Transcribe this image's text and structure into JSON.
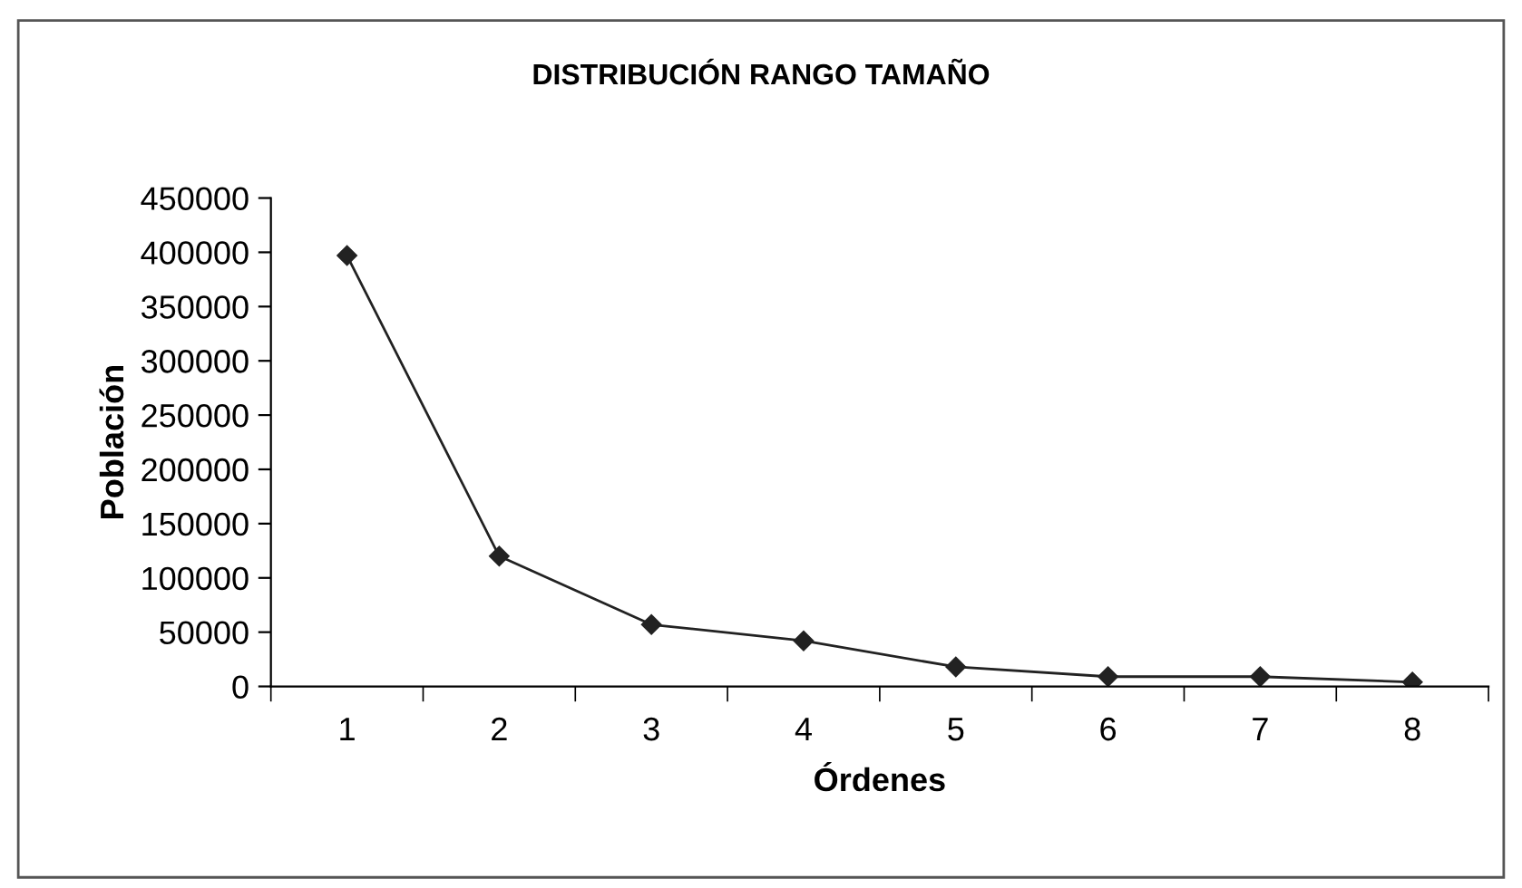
{
  "chart_data": {
    "type": "line",
    "title": "DISTRIBUCIÓN RANGO TAMAÑO",
    "xlabel": "Órdenes",
    "ylabel": "Población",
    "categories": [
      "1",
      "2",
      "3",
      "4",
      "5",
      "6",
      "7",
      "8"
    ],
    "series": [
      {
        "color": "#222222",
        "values": [
          397000,
          120000,
          57000,
          42000,
          18000,
          9000,
          9000,
          4000
        ]
      }
    ],
    "ylim": [
      0,
      450000
    ],
    "yticks": [
      0,
      50000,
      100000,
      150000,
      200000,
      250000,
      300000,
      350000,
      400000,
      450000
    ],
    "marker": "diamond",
    "line_style": "solid",
    "grid": false,
    "legend": false
  }
}
